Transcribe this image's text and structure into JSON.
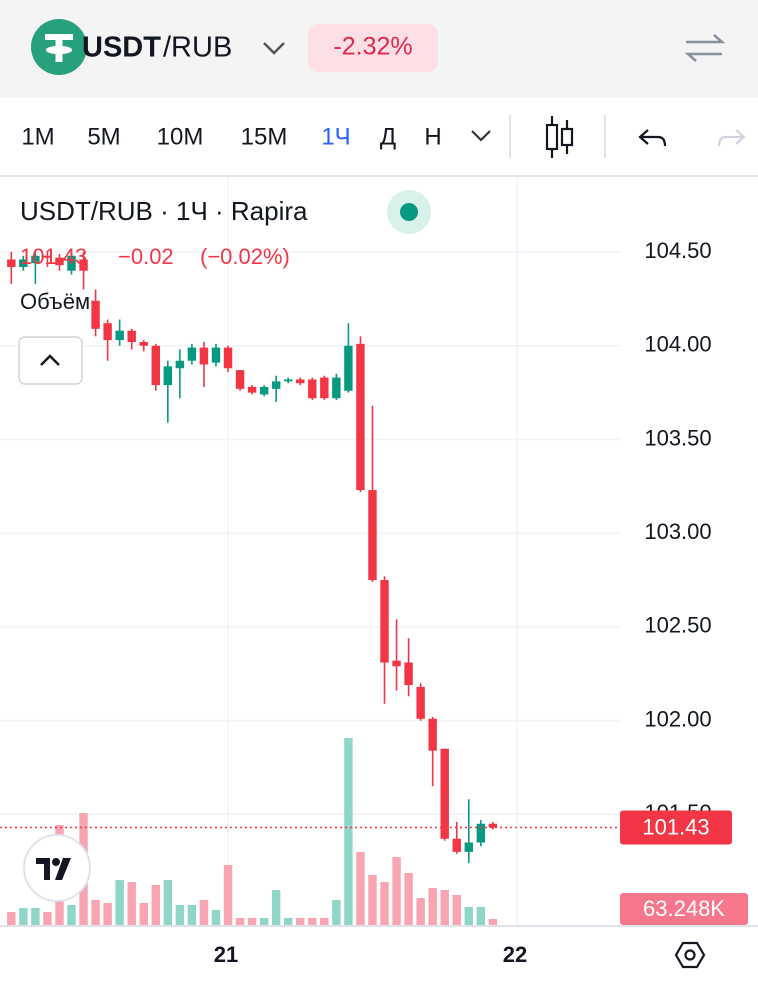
{
  "header": {
    "base": "USDT",
    "quote": "/RUB",
    "change": "-2.32%"
  },
  "toolbar": {
    "intervals": [
      "1M",
      "5M",
      "10M",
      "15M",
      "1Ч",
      "Д",
      "Н"
    ],
    "active": 4
  },
  "chart_data": {
    "type": "candlestick",
    "title": "USDT/RUB · 1Ч · Rapira",
    "change_label": "−0.02",
    "change_percent_label": "(−0.02%)",
    "volume_title": "Объём",
    "up_color": "#089981",
    "down_color": "#f23645",
    "volume_up_color": "#8fd6c9",
    "volume_down_color": "#f8a4b1",
    "x": [
      -18,
      -17,
      -16,
      -15,
      -14,
      -13,
      -12,
      -11,
      -10,
      -9,
      -8,
      -7,
      -6,
      -5,
      -4,
      -3,
      -2,
      -1,
      0,
      1,
      2,
      3,
      4,
      5,
      6,
      7,
      8,
      9,
      10,
      11,
      12,
      13,
      14,
      15,
      16,
      17,
      18,
      19,
      20,
      21,
      22
    ],
    "open": [
      104.46,
      104.42,
      104.44,
      104.48,
      104.47,
      104.4,
      104.46,
      104.24,
      104.12,
      104.03,
      104.08,
      104.02,
      104.0,
      103.79,
      103.88,
      103.92,
      103.99,
      103.91,
      103.99,
      103.87,
      103.78,
      103.74,
      103.77,
      103.81,
      103.82,
      103.82,
      103.83,
      103.72,
      103.76,
      104.01,
      103.23,
      102.75,
      102.32,
      102.31,
      102.18,
      102.01,
      101.85,
      101.37,
      101.3,
      101.35,
      101.45
    ],
    "high": [
      104.5,
      104.48,
      104.5,
      104.5,
      104.49,
      104.5,
      104.5,
      104.3,
      104.14,
      104.14,
      104.09,
      104.03,
      104.01,
      103.92,
      103.98,
      104.01,
      104.02,
      104.01,
      104.0,
      103.87,
      103.79,
      103.79,
      103.84,
      103.83,
      103.83,
      103.83,
      103.84,
      103.85,
      104.12,
      104.05,
      103.68,
      102.77,
      102.54,
      102.44,
      102.2,
      102.02,
      101.85,
      101.46,
      101.58,
      101.47,
      101.46
    ],
    "low": [
      104.33,
      104.4,
      104.33,
      104.42,
      104.4,
      104.38,
      104.3,
      104.05,
      103.92,
      104.0,
      103.98,
      103.97,
      103.76,
      103.59,
      103.72,
      103.9,
      103.78,
      103.89,
      103.86,
      103.76,
      103.74,
      103.73,
      103.7,
      103.8,
      103.79,
      103.71,
      103.71,
      103.71,
      103.75,
      103.22,
      102.74,
      102.09,
      102.16,
      102.13,
      102.0,
      101.65,
      101.36,
      101.29,
      101.24,
      101.33,
      101.42
    ],
    "close": [
      104.42,
      104.46,
      104.48,
      104.47,
      104.43,
      104.48,
      104.4,
      104.09,
      104.03,
      104.08,
      104.02,
      104.0,
      103.79,
      103.89,
      103.92,
      103.99,
      103.9,
      103.99,
      103.88,
      103.77,
      103.75,
      103.78,
      103.81,
      103.82,
      103.8,
      103.72,
      103.72,
      103.83,
      104.0,
      103.23,
      102.75,
      102.31,
      102.29,
      102.19,
      102.01,
      101.84,
      101.37,
      101.3,
      101.35,
      101.45,
      101.43
    ],
    "volume": [
      136500,
      178500,
      178500,
      136500,
      1050000,
      210000,
      1176000,
      262500,
      231000,
      472500,
      451500,
      231000,
      420000,
      472500,
      210000,
      210000,
      262500,
      157500,
      630000,
      73500,
      73500,
      73500,
      367500,
      73500,
      73500,
      73500,
      73500,
      262500,
      1963500,
      766500,
      525000,
      451500,
      714000,
      546000,
      283500,
      388500,
      367500,
      315000,
      189000,
      189000,
      63248
    ],
    "last_volume_label": "63.248K",
    "vlim": [
      0,
      2100000
    ],
    "xlim": [
      -18.94,
      32.56
    ],
    "xticks": [
      {
        "value": 0,
        "label": "21"
      },
      {
        "value": 24,
        "label": "22"
      }
    ],
    "ylim": [
      100.91,
      104.9
    ],
    "yticks": [
      {
        "value": 101.5,
        "label": "101.50"
      },
      {
        "value": 102,
        "label": "102.00"
      },
      {
        "value": 102.5,
        "label": "102.50"
      },
      {
        "value": 103,
        "label": "103.00"
      },
      {
        "value": 103.5,
        "label": "103.50"
      },
      {
        "value": 104,
        "label": "104.00"
      },
      {
        "value": 104.5,
        "label": "104.50"
      }
    ],
    "grid": true
  }
}
